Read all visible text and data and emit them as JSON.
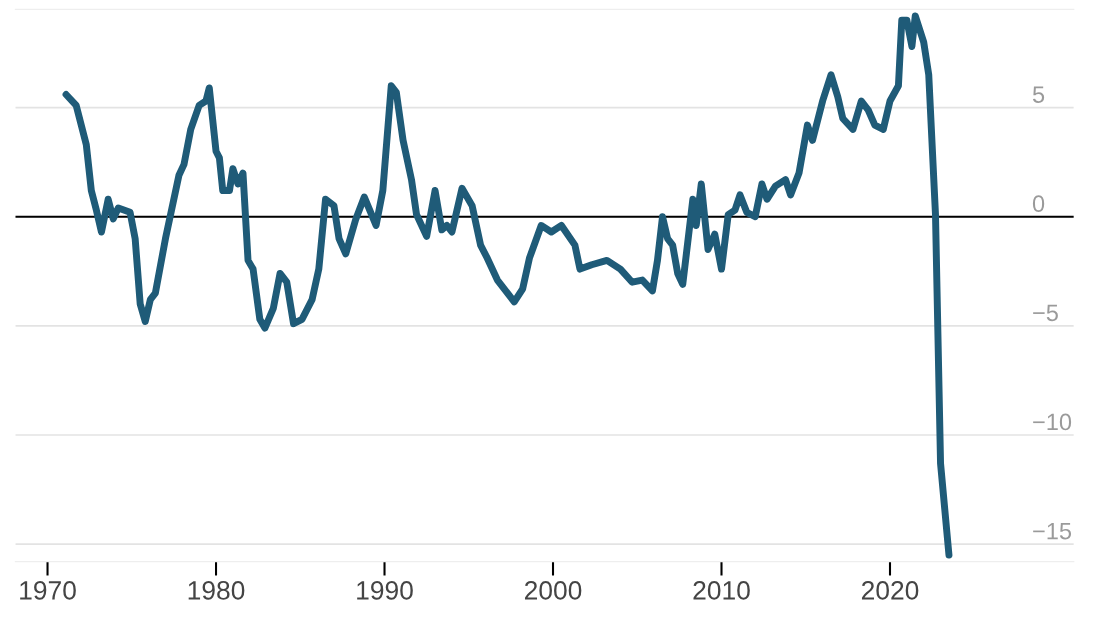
{
  "chart_data": {
    "type": "line",
    "x": [
      1971.1,
      1971.7,
      1972.3,
      1972.6,
      1972.9,
      1973.2,
      1973.6,
      1973.9,
      1974.2,
      1974.9,
      1975.2,
      1975.5,
      1975.8,
      1976.1,
      1976.4,
      1977.0,
      1977.8,
      1978.1,
      1978.5,
      1979.0,
      1979.4,
      1979.6,
      1980.0,
      1980.2,
      1980.4,
      1980.8,
      1981.0,
      1981.3,
      1981.6,
      1981.9,
      1982.2,
      1982.6,
      1982.9,
      1983.4,
      1983.8,
      1984.2,
      1984.6,
      1985.1,
      1985.7,
      1986.1,
      1986.5,
      1987.0,
      1987.3,
      1987.7,
      1988.3,
      1988.8,
      1989.5,
      1989.9,
      1990.4,
      1990.7,
      1991.1,
      1991.6,
      1991.9,
      1992.5,
      1993.0,
      1993.4,
      1993.7,
      1994.0,
      1994.6,
      1995.2,
      1995.7,
      1996.1,
      1996.7,
      1997.3,
      1997.7,
      1998.2,
      1998.6,
      1999.3,
      1999.9,
      2000.5,
      2001.3,
      2001.6,
      2002.3,
      2003.2,
      2004.0,
      2004.7,
      2005.3,
      2005.9,
      2006.2,
      2006.5,
      2006.8,
      2007.1,
      2007.4,
      2007.7,
      2008.3,
      2008.5,
      2008.8,
      2009.2,
      2009.6,
      2010.0,
      2010.4,
      2010.8,
      2011.1,
      2011.5,
      2012.0,
      2012.4,
      2012.7,
      2013.2,
      2013.8,
      2014.1,
      2014.6,
      2015.1,
      2015.4,
      2016.0,
      2016.5,
      2016.9,
      2017.2,
      2017.8,
      2018.3,
      2018.7,
      2019.1,
      2019.6,
      2020.0,
      2020.5,
      2020.7,
      2021.0,
      2021.3,
      2021.5,
      2022.0,
      2022.3,
      2022.7,
      2023.0,
      2023.5
    ],
    "series": [
      {
        "color": "#1f5b78",
        "values": [
          5.6,
          5.1,
          3.3,
          1.2,
          0.3,
          -0.7,
          0.8,
          -0.1,
          0.4,
          0.2,
          -1.0,
          -4.0,
          -4.8,
          -3.8,
          -3.5,
          -1.0,
          1.9,
          2.4,
          4.0,
          5.1,
          5.3,
          5.9,
          3.0,
          2.7,
          1.2,
          1.2,
          2.2,
          1.5,
          2.0,
          -2.0,
          -2.4,
          -4.7,
          -5.1,
          -4.2,
          -2.6,
          -3.0,
          -4.9,
          -4.7,
          -3.8,
          -2.4,
          0.8,
          0.5,
          -1.0,
          -1.7,
          -0.1,
          0.9,
          -0.4,
          1.2,
          6.0,
          5.7,
          3.5,
          1.7,
          0.1,
          -0.9,
          1.2,
          -0.6,
          -0.4,
          -0.7,
          1.3,
          0.5,
          -1.3,
          -1.9,
          -2.9,
          -3.5,
          -3.9,
          -3.3,
          -1.9,
          -0.4,
          -0.7,
          -0.4,
          -1.3,
          -2.4,
          -2.2,
          -2.0,
          -2.4,
          -3.0,
          -2.9,
          -3.4,
          -2.0,
          0.0,
          -1.0,
          -1.3,
          -2.6,
          -3.1,
          0.8,
          -0.4,
          1.5,
          -1.5,
          -0.8,
          -2.4,
          0.1,
          0.3,
          1.0,
          0.2,
          0.0,
          1.5,
          0.8,
          1.4,
          1.7,
          1.0,
          2.0,
          4.2,
          3.5,
          5.3,
          6.5,
          5.5,
          4.5,
          4.0,
          5.3,
          4.9,
          4.2,
          4.0,
          5.3,
          6.0,
          9.0,
          9.0,
          7.8,
          9.2,
          8.0,
          6.5,
          0.1,
          -11.3,
          -15.5
        ]
      }
    ],
    "xlim": [
      1968.1,
      2030.9
    ],
    "xticks": [
      1970,
      1980,
      1990,
      2000,
      2010,
      2020
    ],
    "ylim": [
      -15.8,
      9.5
    ],
    "yticks": [
      5,
      0,
      {
        "value": -5,
        "label": "−5"
      },
      {
        "value": -10,
        "label": "−10"
      },
      {
        "value": -15,
        "label": "−15"
      }
    ],
    "grid": "y",
    "ref_lines": [
      {
        "axis": "y",
        "value": 0,
        "color": "#000000"
      }
    ],
    "line_style": "solid",
    "marker": "none"
  }
}
